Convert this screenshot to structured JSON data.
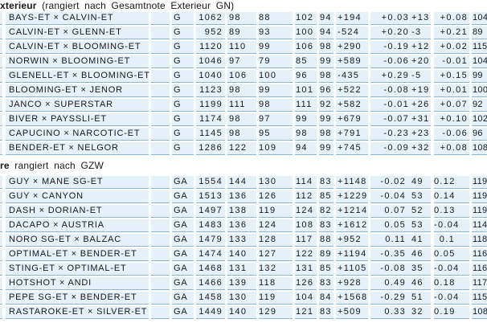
{
  "colors": {
    "page_bg": "#ffffff",
    "row_bg": "#e5f1f9",
    "row_border": "#8cb6d7",
    "text": "#181818"
  },
  "sections": [
    {
      "heading_bold": "xterieur",
      "heading_rest": " (rangiert nach Gesamtnote Exterieur GN)",
      "rows": [
        {
          "name": "BAYS-ET × CALVIN-ET",
          "code": "G",
          "v1": "1062",
          "v2": "98",
          "v3": "88",
          "v4": "102",
          "v5": "94",
          "milk": "+194",
          "fat_pct": "+0.03",
          "fat_kg": "+13",
          "prot_pct": "+0.08",
          "total": "104"
        },
        {
          "name": "CALVIN-ET × GLENN-ET",
          "code": "G",
          "v1": "952",
          "v2": "89",
          "v3": "93",
          "v4": "100",
          "v5": "94",
          "milk": "-524",
          "fat_pct": "+0.20",
          "fat_kg": "-3",
          "prot_pct": "+0.21",
          "total": "89"
        },
        {
          "name": "CALVIN-ET × BLOOMING-ET",
          "code": "G",
          "v1": "1120",
          "v2": "110",
          "v3": "99",
          "v4": "106",
          "v5": "98",
          "milk": "+290",
          "fat_pct": "-0.19",
          "fat_kg": "+12",
          "prot_pct": "+0.02",
          "total": "115"
        },
        {
          "name": "NORWIN × BLOOMING-ET",
          "code": "G",
          "v1": "1046",
          "v2": "97",
          "v3": "79",
          "v4": "85",
          "v5": "99",
          "milk": "+589",
          "fat_pct": "-0.06",
          "fat_kg": "+20",
          "prot_pct": "-0.01",
          "total": "104"
        },
        {
          "name": "GLENELL-ET × BLOOMING-ET",
          "code": "G",
          "v1": "1040",
          "v2": "106",
          "v3": "100",
          "v4": "96",
          "v5": "98",
          "milk": "-435",
          "fat_pct": "+0.29",
          "fat_kg": "-5",
          "prot_pct": "+0.15",
          "total": "99"
        },
        {
          "name": "BLOOMING-ET × JENOR",
          "code": "G",
          "v1": "1123",
          "v2": "98",
          "v3": "99",
          "v4": "101",
          "v5": "96",
          "milk": "+522",
          "fat_pct": "-0.08",
          "fat_kg": "+19",
          "prot_pct": "+0.01",
          "total": "100"
        },
        {
          "name": "JANCO × SUPERSTAR",
          "code": "G",
          "v1": "1199",
          "v2": "111",
          "v3": "98",
          "v4": "111",
          "v5": "92",
          "milk": "+582",
          "fat_pct": "-0.01",
          "fat_kg": "+26",
          "prot_pct": "+0.07",
          "total": "92"
        },
        {
          "name": "BIVER × PAYSSLI-ET",
          "code": "G",
          "v1": "1174",
          "v2": "98",
          "v3": "97",
          "v4": "99",
          "v5": "99",
          "milk": "+679",
          "fat_pct": "-0.07",
          "fat_kg": "+31",
          "prot_pct": "+0.10",
          "total": "102"
        },
        {
          "name": "CAPUCINO × NARCOTIC-ET",
          "code": "G",
          "v1": "1145",
          "v2": "98",
          "v3": "95",
          "v4": "98",
          "v5": "98",
          "milk": "+791",
          "fat_pct": "-0.23",
          "fat_kg": "+23",
          "prot_pct": "-0.06",
          "total": "96"
        },
        {
          "name": "BENDER-ET × NELGOR",
          "code": "G",
          "v1": "1286",
          "v2": "122",
          "v3": "109",
          "v4": "94",
          "v5": "99",
          "milk": "+745",
          "fat_pct": "-0.09",
          "fat_kg": "+32",
          "prot_pct": "+0.08",
          "total": "108"
        }
      ]
    },
    {
      "heading_bold": "re",
      "heading_rest": " rangiert nach GZW",
      "rows": [
        {
          "name": "GUY × MANE SG-ET",
          "code": "GA",
          "v1": "1554",
          "v2": "144",
          "v3": "130",
          "v4": "114",
          "v5": "83",
          "milk": "+1148",
          "fat_pct": "-0.02",
          "fat_kg": "49",
          "prot_pct": "0.12",
          "total": "119"
        },
        {
          "name": "GUY × CANYON",
          "code": "GA",
          "v1": "1513",
          "v2": "136",
          "v3": "126",
          "v4": "112",
          "v5": "85",
          "milk": "+1229",
          "fat_pct": "-0.04",
          "fat_kg": "53",
          "prot_pct": "0.14",
          "total": "119"
        },
        {
          "name": "DASH × DORIAN-ET",
          "code": "GA",
          "v1": "1497",
          "v2": "138",
          "v3": "119",
          "v4": "124",
          "v5": "82",
          "milk": "+1214",
          "fat_pct": "0.07",
          "fat_kg": "52",
          "prot_pct": "0.13",
          "total": "119"
        },
        {
          "name": "DACAPO × AUSTRIA",
          "code": "GA",
          "v1": "1483",
          "v2": "136",
          "v3": "124",
          "v4": "108",
          "v5": "83",
          "milk": "+1612",
          "fat_pct": "0.05",
          "fat_kg": "53",
          "prot_pct": "-0.04",
          "total": "114"
        },
        {
          "name": "NORO SG-ET × BALZAC",
          "code": "GA",
          "v1": "1479",
          "v2": "133",
          "v3": "128",
          "v4": "117",
          "v5": "88",
          "milk": "+952",
          "fat_pct": "0.11",
          "fat_kg": "41",
          "prot_pct": "0.1",
          "total": "118"
        },
        {
          "name": "OPTIMAL-ET × BENDER-ET",
          "code": "GA",
          "v1": "1474",
          "v2": "140",
          "v3": "127",
          "v4": "122",
          "v5": "89",
          "milk": "+1194",
          "fat_pct": "-0.35",
          "fat_kg": "46",
          "prot_pct": "0.05",
          "total": "116"
        },
        {
          "name": "STING-ET × OPTIMAL-ET",
          "code": "GA",
          "v1": "1468",
          "v2": "131",
          "v3": "132",
          "v4": "131",
          "v5": "85",
          "milk": "+1105",
          "fat_pct": "-0.08",
          "fat_kg": "35",
          "prot_pct": "-0.04",
          "total": "116"
        },
        {
          "name": "HOTSHOT × ANDI",
          "code": "GA",
          "v1": "1466",
          "v2": "139",
          "v3": "118",
          "v4": "126",
          "v5": "83",
          "milk": "+928",
          "fat_pct": "0.49",
          "fat_kg": "46",
          "prot_pct": "0.18",
          "total": "117"
        },
        {
          "name": "PEPE SG-ET × BENDER-ET",
          "code": "GA",
          "v1": "1458",
          "v2": "130",
          "v3": "119",
          "v4": "104",
          "v5": "84",
          "milk": "+1568",
          "fat_pct": "-0.29",
          "fat_kg": "51",
          "prot_pct": "-0.04",
          "total": "115"
        },
        {
          "name": "RASTAROKE-ET × SILVER-ET",
          "code": "GA",
          "v1": "1449",
          "v2": "140",
          "v3": "129",
          "v4": "121",
          "v5": "83",
          "milk": "+509",
          "fat_pct": "0.33",
          "fat_kg": "32",
          "prot_pct": "0.19",
          "total": "108"
        }
      ]
    }
  ]
}
